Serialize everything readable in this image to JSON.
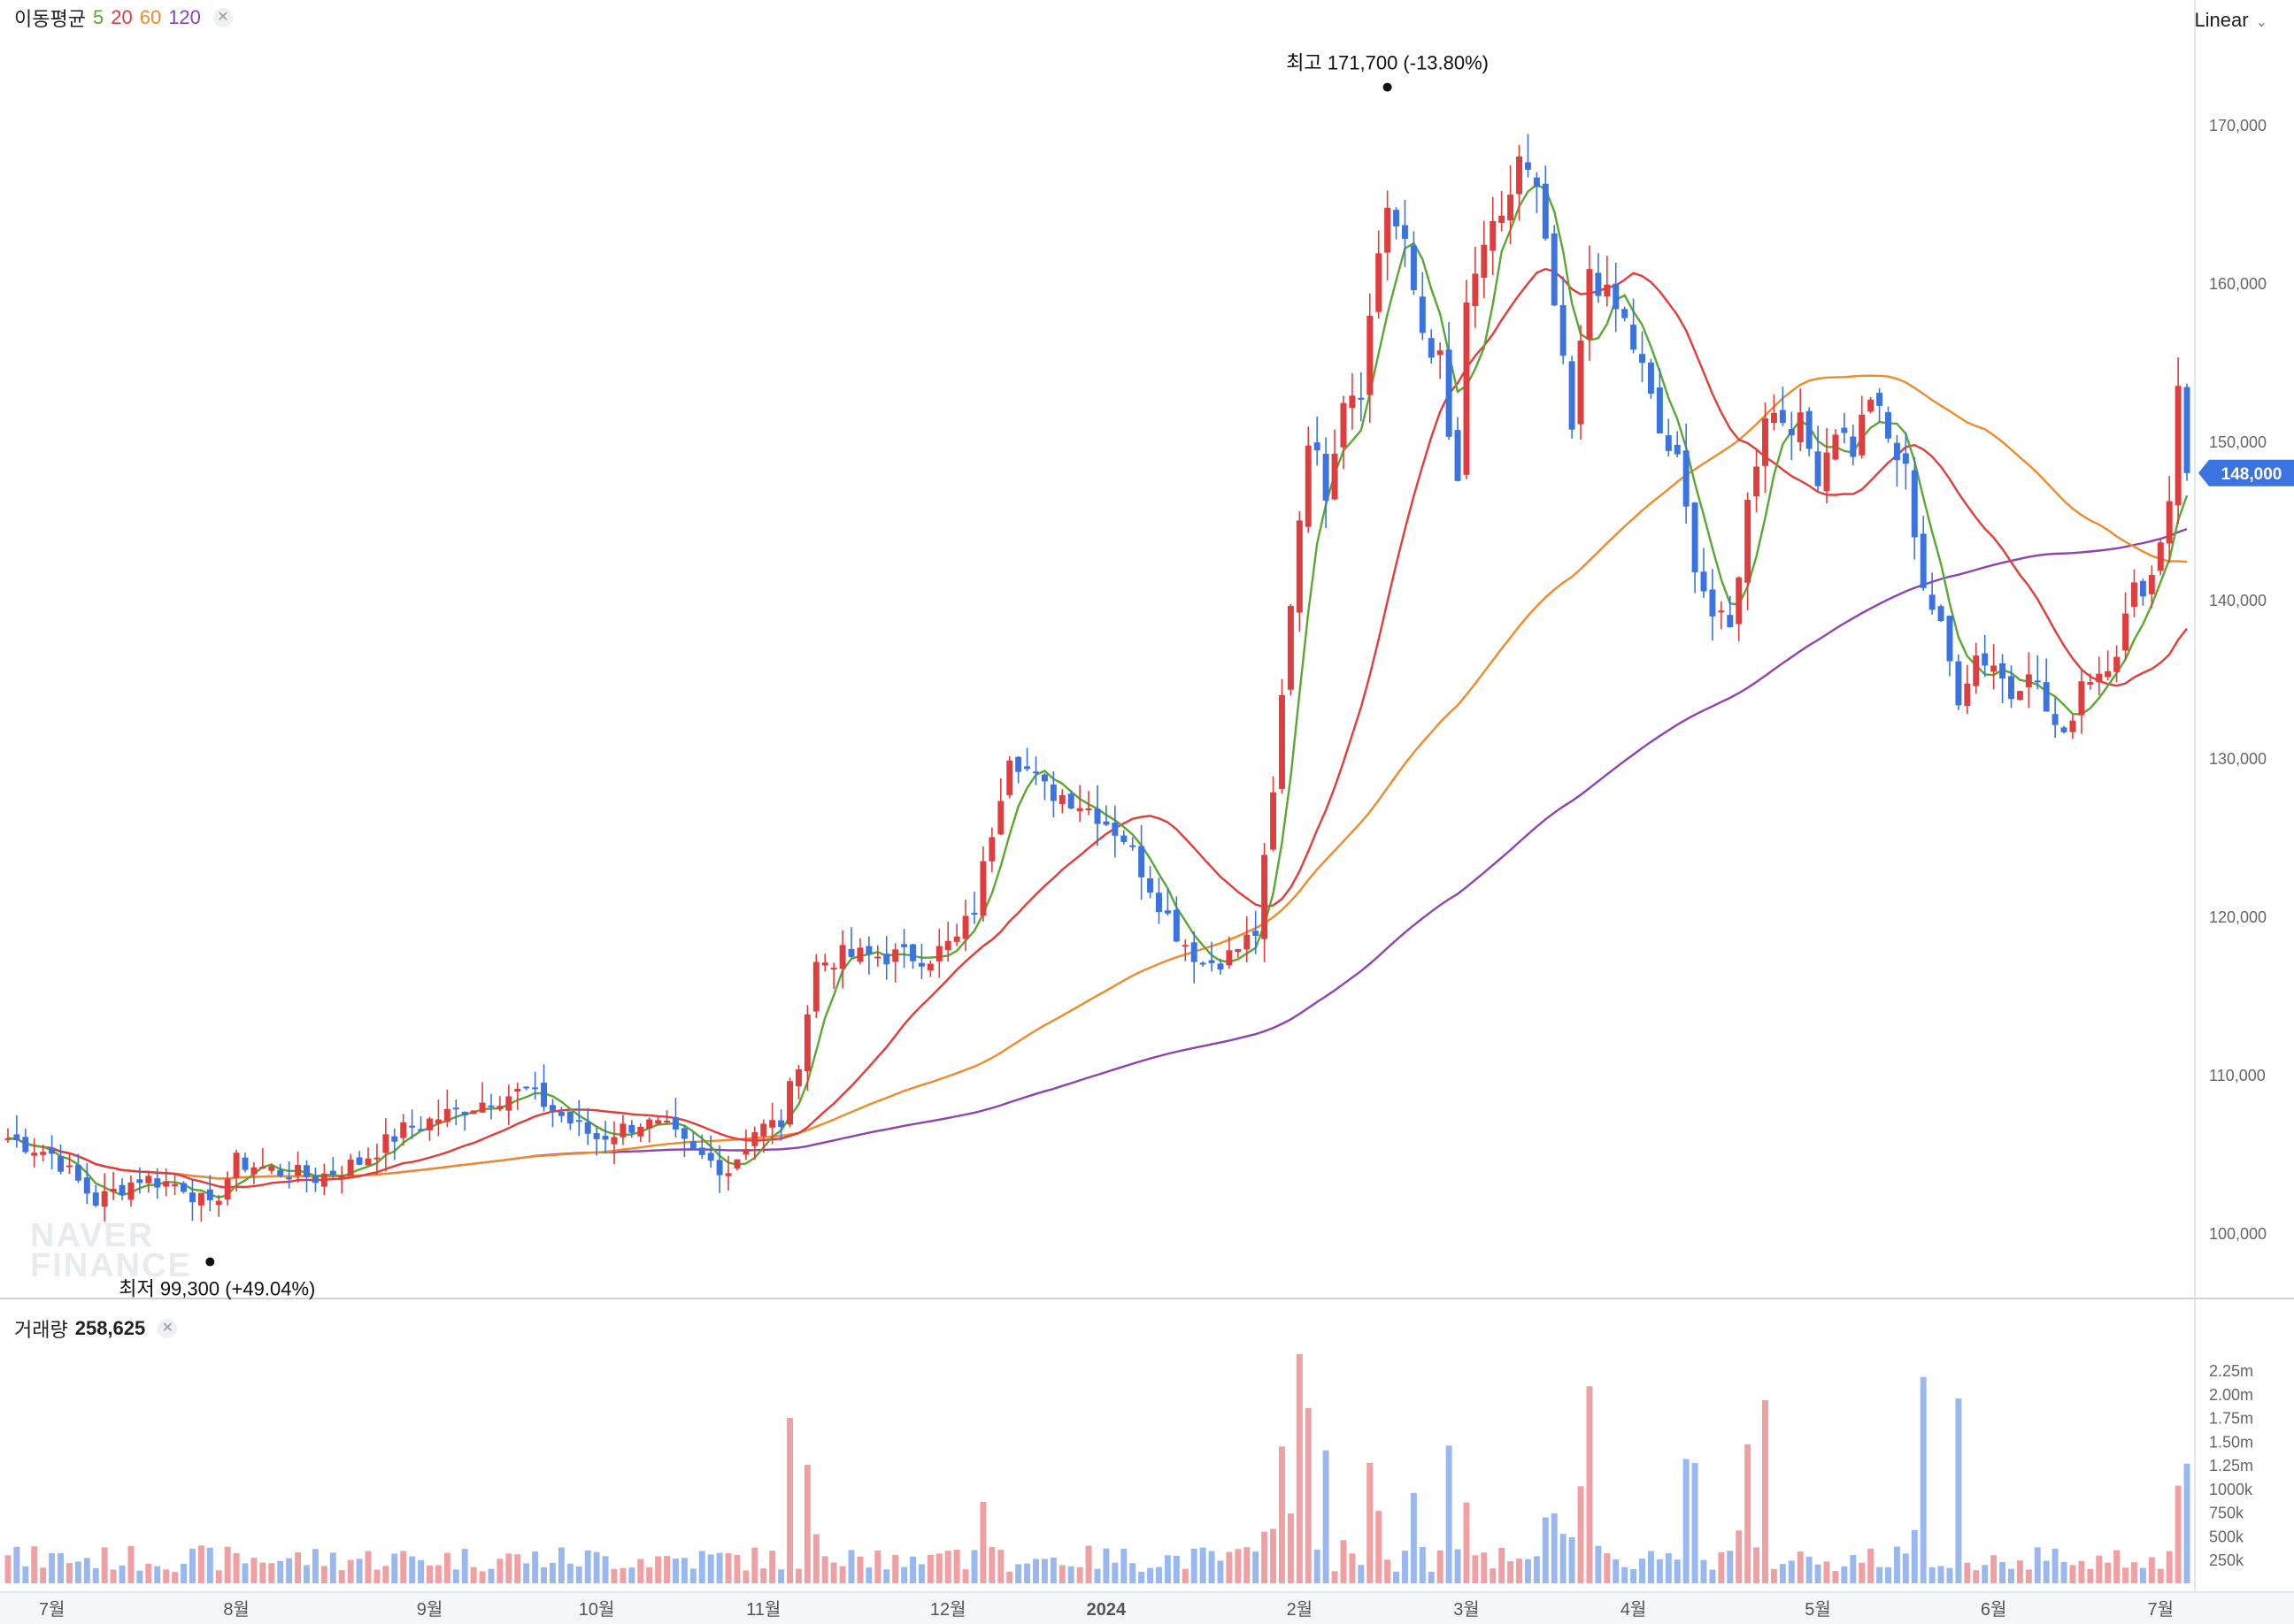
{
  "header": {
    "ma_label": "이동평균",
    "ma_periods": [
      {
        "label": "5",
        "color": "#5aa832"
      },
      {
        "label": "20",
        "color": "#e23c3c"
      },
      {
        "label": "60",
        "color": "#ee8b2a"
      },
      {
        "label": "120",
        "color": "#8e44ad"
      }
    ],
    "close_icon": "x-icon",
    "scale_mode": "Linear",
    "scale_icon": "chevron-down-icon"
  },
  "volume_header": {
    "label": "거래량",
    "value": "258,625",
    "close_icon": "x-icon"
  },
  "watermark": [
    "NAVER",
    "FINANCE"
  ],
  "colors": {
    "up": "#e03e3e",
    "down": "#3b73e0",
    "vol_up": "#f0a0a2",
    "vol_down": "#9ab8f0",
    "price_tag": "#3b73e0"
  },
  "chart_data": {
    "type": "candlestick",
    "y_ticks": [
      "100,000",
      "110,000",
      "120,000",
      "130,000",
      "140,000",
      "150,000",
      "160,000",
      "170,000"
    ],
    "y_tick_values": [
      100000,
      110000,
      120000,
      130000,
      140000,
      150000,
      160000,
      170000
    ],
    "ylim": [
      96000,
      174000
    ],
    "x_ticks": [
      {
        "label": "7월",
        "index": 5
      },
      {
        "label": "8월",
        "index": 26
      },
      {
        "label": "9월",
        "index": 48
      },
      {
        "label": "10월",
        "index": 67
      },
      {
        "label": "11월",
        "index": 86
      },
      {
        "label": "12월",
        "index": 107
      },
      {
        "label": "2024",
        "index": 125
      },
      {
        "label": "2월",
        "index": 147
      },
      {
        "label": "3월",
        "index": 166
      },
      {
        "label": "4월",
        "index": 185
      },
      {
        "label": "5월",
        "index": 206
      },
      {
        "label": "6월",
        "index": 226
      },
      {
        "label": "7월",
        "index": 245
      }
    ],
    "current_price": {
      "label": "148,000",
      "value": 148000
    },
    "high_annotation": {
      "label": "최고 171,700 (-13.80%)",
      "index": 157,
      "value": 171700
    },
    "low_annotation": {
      "label": "최저 99,300 (+49.04%)",
      "index": 23,
      "value": 99300
    },
    "volume_ticks": [
      "2.25m",
      "2.00m",
      "1.75m",
      "1.50m",
      "1.25m",
      "1000k",
      "750k",
      "500k",
      "250k"
    ],
    "volume_tick_values": [
      2250000,
      2000000,
      1750000,
      1500000,
      1250000,
      1000000,
      750000,
      500000,
      250000
    ],
    "volume_max": 2500000,
    "close_anchors": [
      [
        0,
        106000
      ],
      [
        5,
        105000
      ],
      [
        10,
        102000
      ],
      [
        15,
        103500
      ],
      [
        20,
        103000
      ],
      [
        23,
        101500
      ],
      [
        26,
        104500
      ],
      [
        30,
        104000
      ],
      [
        35,
        103500
      ],
      [
        40,
        104500
      ],
      [
        45,
        106500
      ],
      [
        50,
        107500
      ],
      [
        55,
        108500
      ],
      [
        59,
        109000
      ],
      [
        64,
        107000
      ],
      [
        67,
        106000
      ],
      [
        72,
        107000
      ],
      [
        75,
        106500
      ],
      [
        78,
        105000
      ],
      [
        82,
        104000
      ],
      [
        85,
        106500
      ],
      [
        88,
        107000
      ],
      [
        90,
        111000
      ],
      [
        92,
        117000
      ],
      [
        95,
        117500
      ],
      [
        100,
        117500
      ],
      [
        105,
        117500
      ],
      [
        108,
        118500
      ],
      [
        110,
        120500
      ],
      [
        112,
        125500
      ],
      [
        114,
        130500
      ],
      [
        118,
        128000
      ],
      [
        121,
        127500
      ],
      [
        124,
        126500
      ],
      [
        127,
        125000
      ],
      [
        130,
        122000
      ],
      [
        133,
        119000
      ],
      [
        136,
        117000
      ],
      [
        139,
        117500
      ],
      [
        142,
        119000
      ],
      [
        144,
        127500
      ],
      [
        146,
        140000
      ],
      [
        148,
        150500
      ],
      [
        150,
        147000
      ],
      [
        152,
        153000
      ],
      [
        154,
        153500
      ],
      [
        156,
        162000
      ],
      [
        157,
        165000
      ],
      [
        159,
        162000
      ],
      [
        161,
        157000
      ],
      [
        163,
        155000
      ],
      [
        164,
        150000
      ],
      [
        165,
        147500
      ],
      [
        166,
        158000
      ],
      [
        168,
        162500
      ],
      [
        170,
        163500
      ],
      [
        172,
        168000
      ],
      [
        174,
        165500
      ],
      [
        176,
        158500
      ],
      [
        178,
        150500
      ],
      [
        180,
        161000
      ],
      [
        182,
        159000
      ],
      [
        184,
        157500
      ],
      [
        186,
        154500
      ],
      [
        188,
        150500
      ],
      [
        190,
        148500
      ],
      [
        192,
        142500
      ],
      [
        194,
        139000
      ],
      [
        196,
        138000
      ],
      [
        198,
        146000
      ],
      [
        200,
        152000
      ],
      [
        202,
        151500
      ],
      [
        204,
        151000
      ],
      [
        206,
        148000
      ],
      [
        208,
        151000
      ],
      [
        210,
        149500
      ],
      [
        212,
        153000
      ],
      [
        214,
        150000
      ],
      [
        216,
        148000
      ],
      [
        218,
        141000
      ],
      [
        220,
        138000
      ],
      [
        222,
        134000
      ],
      [
        224,
        136500
      ],
      [
        226,
        136000
      ],
      [
        228,
        134000
      ],
      [
        230,
        136000
      ],
      [
        232,
        133000
      ],
      [
        234,
        131000
      ],
      [
        236,
        135000
      ],
      [
        238,
        135500
      ],
      [
        240,
        137000
      ],
      [
        242,
        140500
      ],
      [
        244,
        141500
      ],
      [
        246,
        146500
      ],
      [
        247,
        154000
      ],
      [
        248,
        148000
      ]
    ]
  }
}
